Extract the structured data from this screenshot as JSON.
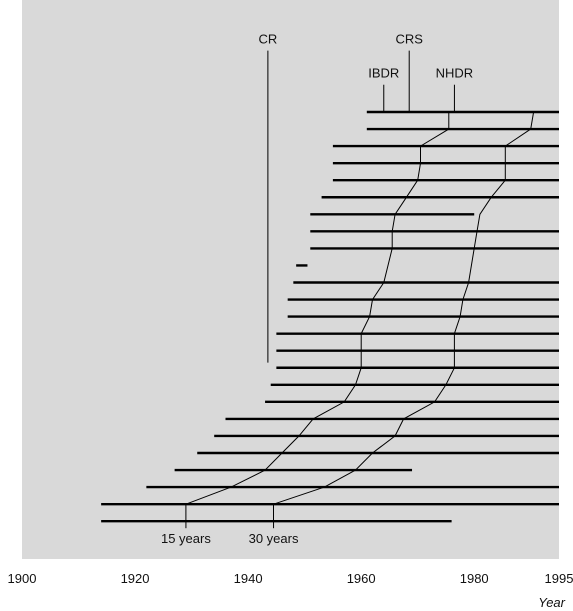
{
  "chart_data": {
    "type": "line",
    "xlabel": "Year",
    "xlim": [
      1900,
      1995
    ],
    "x_ticks": [
      1900,
      1920,
      1940,
      1960,
      1980,
      1995
    ],
    "background_color": "#d9d9d9",
    "line_color": "#000000",
    "bars": [
      {
        "start": 1961,
        "end": 1995
      },
      {
        "start": 1961,
        "end": 1995
      },
      {
        "start": 1955,
        "end": 1995
      },
      {
        "start": 1955,
        "end": 1995
      },
      {
        "start": 1955,
        "end": 1995
      },
      {
        "start": 1953,
        "end": 1995
      },
      {
        "start": 1951,
        "end": 1980
      },
      {
        "start": 1951,
        "end": 1995
      },
      {
        "start": 1951,
        "end": 1995
      },
      {
        "start": 1948.5,
        "end": 1950.5
      },
      {
        "start": 1948,
        "end": 1995
      },
      {
        "start": 1947,
        "end": 1995
      },
      {
        "start": 1947,
        "end": 1995
      },
      {
        "start": 1945,
        "end": 1995
      },
      {
        "start": 1945,
        "end": 1995
      },
      {
        "start": 1945,
        "end": 1995
      },
      {
        "start": 1944,
        "end": 1995
      },
      {
        "start": 1943,
        "end": 1995
      },
      {
        "start": 1936,
        "end": 1995
      },
      {
        "start": 1934,
        "end": 1995
      },
      {
        "start": 1931,
        "end": 1995
      },
      {
        "start": 1927,
        "end": 1969
      },
      {
        "start": 1922,
        "end": 1995
      },
      {
        "start": 1914,
        "end": 1995
      },
      {
        "start": 1914,
        "end": 1976
      }
    ],
    "series": [
      {
        "name": "15 years",
        "points": [
          {
            "row": 0,
            "x": 1975.5
          },
          {
            "row": 1,
            "x": 1975.5
          },
          {
            "row": 2,
            "x": 1970.5
          },
          {
            "row": 3,
            "x": 1970.5
          },
          {
            "row": 4,
            "x": 1970
          },
          {
            "row": 5,
            "x": 1968
          },
          {
            "row": 6,
            "x": 1966
          },
          {
            "row": 7,
            "x": 1965.5
          },
          {
            "row": 8,
            "x": 1965.5
          },
          {
            "row": 10,
            "x": 1964
          },
          {
            "row": 11,
            "x": 1962
          },
          {
            "row": 12,
            "x": 1961.5
          },
          {
            "row": 13,
            "x": 1960
          },
          {
            "row": 14,
            "x": 1960
          },
          {
            "row": 15,
            "x": 1960
          },
          {
            "row": 16,
            "x": 1959
          },
          {
            "row": 17,
            "x": 1957
          },
          {
            "row": 18,
            "x": 1951.5
          },
          {
            "row": 19,
            "x": 1949
          },
          {
            "row": 20,
            "x": 1946
          },
          {
            "row": 21,
            "x": 1943
          },
          {
            "row": 22,
            "x": 1937
          },
          {
            "row": 23,
            "x": 1929
          },
          {
            "row": 24,
            "x": 1929
          }
        ],
        "annotation": "15 years"
      },
      {
        "name": "30 years",
        "points": [
          {
            "row": 0,
            "x": 1990.5
          },
          {
            "row": 1,
            "x": 1990
          },
          {
            "row": 2,
            "x": 1985.5
          },
          {
            "row": 3,
            "x": 1985.5
          },
          {
            "row": 4,
            "x": 1985.5
          },
          {
            "row": 5,
            "x": 1983
          },
          {
            "row": 6,
            "x": 1981
          },
          {
            "row": 7,
            "x": 1980.5
          },
          {
            "row": 8,
            "x": 1980
          },
          {
            "row": 10,
            "x": 1979
          },
          {
            "row": 11,
            "x": 1978
          },
          {
            "row": 12,
            "x": 1977.5
          },
          {
            "row": 13,
            "x": 1976.5
          },
          {
            "row": 14,
            "x": 1976.5
          },
          {
            "row": 15,
            "x": 1976.5
          },
          {
            "row": 16,
            "x": 1975
          },
          {
            "row": 17,
            "x": 1973
          },
          {
            "row": 18,
            "x": 1967.5
          },
          {
            "row": 19,
            "x": 1966
          },
          {
            "row": 20,
            "x": 1962
          },
          {
            "row": 21,
            "x": 1959
          },
          {
            "row": 22,
            "x": 1953.5
          },
          {
            "row": 23,
            "x": 1944.5
          },
          {
            "row": 24,
            "x": 1944.5
          }
        ],
        "annotation": "30 years"
      }
    ],
    "markers": [
      {
        "label": "CR",
        "x": 1943.5,
        "from_row": -3.6,
        "to_row": 14.7
      },
      {
        "label": "IBDR",
        "x": 1964,
        "from_row": -1.6,
        "to_row": 0
      },
      {
        "label": "CRS",
        "x": 1968.5,
        "from_row": -3.6,
        "to_row": 0
      },
      {
        "label": "NHDR",
        "x": 1976.5,
        "from_row": -1.6,
        "to_row": 0
      }
    ]
  }
}
